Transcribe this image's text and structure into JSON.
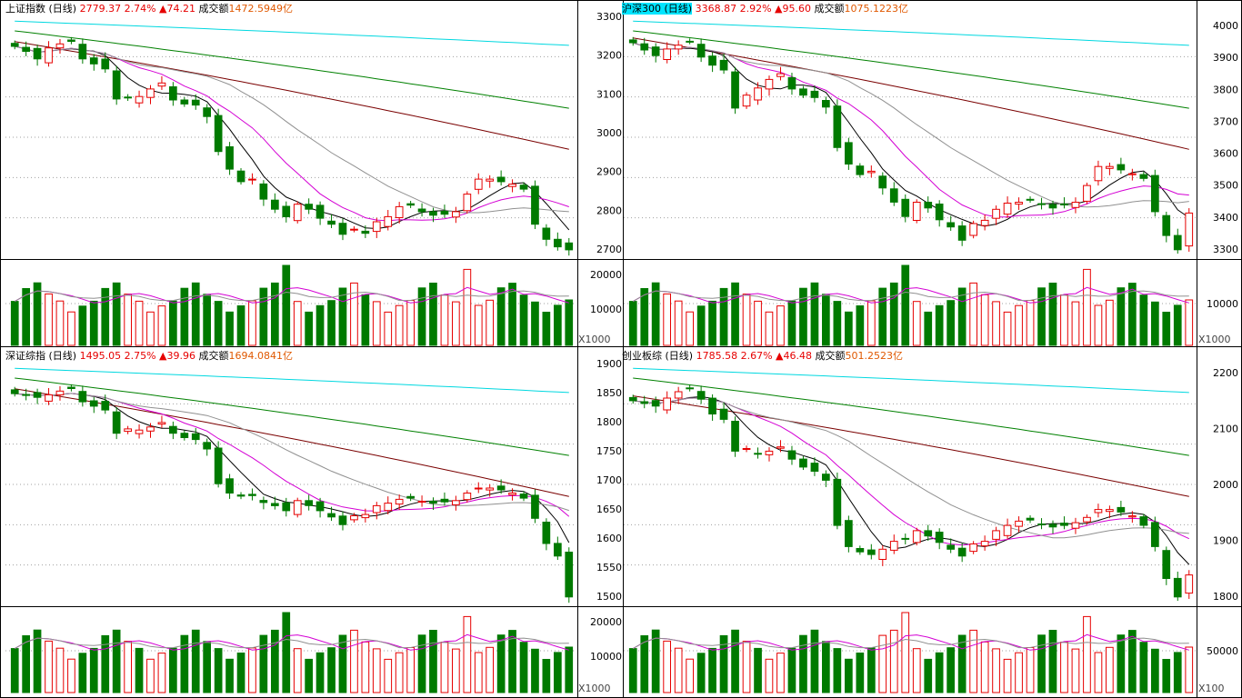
{
  "colors": {
    "up": "#e60000",
    "down": "#007a00",
    "ma5": "#000000",
    "ma10": "#d400d4",
    "ma20": "#909090",
    "ma60": "#7a0000",
    "ma120": "#008000",
    "ma250": "#00d8e0",
    "highlight": "#00e5ff",
    "grid": "#a0a0a0"
  },
  "panels": [
    {
      "name": "上证指数 (日线)",
      "price": "2779.37",
      "change_pct": "2.74%",
      "change_abs": "▲74.21",
      "turnover_label": "成交额",
      "turnover": "1472.5949亿",
      "highlight_name": false,
      "axis_side": "right",
      "price_ticks": [],
      "volume_ticks": [],
      "volume_unit": "X1000"
    },
    {
      "name": "沪深300 (日线)",
      "price": "3368.87",
      "change_pct": "2.92%",
      "change_abs": "▲95.60",
      "turnover_label": "成交额",
      "turnover": "1075.1223亿",
      "highlight_name": true,
      "axis_side": "both",
      "price_ticks": [
        "3300",
        "3200",
        "3100",
        "3000",
        "2900",
        "2800",
        "2700"
      ],
      "price_ticks_right": [
        "4000",
        "3900",
        "3800",
        "3700",
        "3600",
        "3500",
        "3400",
        "3300"
      ],
      "volume_ticks": [
        "20000",
        "10000"
      ],
      "volume_ticks_right": [
        "10000"
      ],
      "volume_unit": "X1000"
    },
    {
      "name": "深证综指 (日线)",
      "price": "1495.05",
      "change_pct": "2.75%",
      "change_abs": "▲39.96",
      "turnover_label": "成交额",
      "turnover": "1694.0841亿",
      "highlight_name": false,
      "axis_side": "right",
      "price_ticks": [],
      "volume_ticks": [],
      "volume_unit": "X1000"
    },
    {
      "name": "创业板综 (日线)",
      "price": "1785.58",
      "change_pct": "2.67%",
      "change_abs": "▲46.48",
      "turnover_label": "成交额",
      "turnover": "501.2523亿",
      "highlight_name": false,
      "axis_side": "both",
      "price_ticks": [
        "1900",
        "1850",
        "1800",
        "1750",
        "1700",
        "1650",
        "1600",
        "1550",
        "1500"
      ],
      "price_ticks_right": [
        "2200",
        "2100",
        "2000",
        "1900",
        "1800"
      ],
      "volume_ticks": [
        "20000",
        "10000"
      ],
      "volume_ticks_right": [
        "50000"
      ],
      "volume_unit": "X100"
    }
  ],
  "chart_data": [
    {
      "type": "candlestick",
      "title": "上证指数 (日线)",
      "series": [
        {
          "name": "close",
          "values": [
            3185,
            3175,
            3160,
            3182,
            3190,
            3195,
            3160,
            3150,
            3140,
            3080,
            3082,
            3085,
            3100,
            3112,
            3078,
            3070,
            3068,
            3045,
            2975,
            2940,
            2915,
            2920,
            2880,
            2860,
            2845,
            2870,
            2860,
            2842,
            2830,
            2810,
            2820,
            2812,
            2835,
            2845,
            2865,
            2868,
            2855,
            2848,
            2850,
            2855,
            2890,
            2920,
            2920,
            2915,
            2910,
            2900,
            2830,
            2800,
            2785,
            2779
          ]
        }
      ],
      "volume_unit": "X1000"
    },
    {
      "type": "candlestick",
      "title": "沪深300 (日线)",
      "ylim": [
        2700,
        3300
      ],
      "ylim_right": [
        3300,
        4000
      ],
      "x_ticks": [],
      "series": [
        {
          "name": "close",
          "values": [
            3195,
            3180,
            3168,
            3182,
            3190,
            3198,
            3165,
            3148,
            3138,
            3058,
            3085,
            3100,
            3118,
            3130,
            3098,
            3085,
            3080,
            3060,
            2975,
            2940,
            2918,
            2925,
            2890,
            2860,
            2830,
            2860,
            2848,
            2823,
            2808,
            2780,
            2815,
            2822,
            2845,
            2858,
            2860,
            2865,
            2855,
            2848,
            2855,
            2860,
            2895,
            2935,
            2935,
            2928,
            2920,
            2910,
            2840,
            2790,
            2760,
            3368
          ]
        }
      ],
      "volume_ticks": [
        20000,
        10000
      ],
      "volume_unit": "X1000"
    },
    {
      "type": "candlestick",
      "title": "深证综指 (日线)",
      "series": [
        {
          "name": "close",
          "values": [
            1818,
            1815,
            1812,
            1816,
            1822,
            1826,
            1805,
            1798,
            1792,
            1755,
            1762,
            1760,
            1765,
            1772,
            1755,
            1748,
            1745,
            1730,
            1675,
            1660,
            1655,
            1656,
            1645,
            1640,
            1632,
            1648,
            1640,
            1632,
            1622,
            1610,
            1624,
            1626,
            1640,
            1644,
            1650,
            1652,
            1647,
            1644,
            1646,
            1648,
            1660,
            1668,
            1668,
            1665,
            1660,
            1652,
            1620,
            1580,
            1560,
            1495
          ]
        }
      ],
      "volume_unit": "X1000"
    },
    {
      "type": "candlestick",
      "title": "创业板综 (日线)",
      "ylim": [
        1500,
        1900
      ],
      "ylim_right": [
        1800,
        2200
      ],
      "series": [
        {
          "name": "close",
          "values": [
            1855,
            1850,
            1845,
            1860,
            1872,
            1878,
            1858,
            1830,
            1820,
            1760,
            1765,
            1755,
            1760,
            1768,
            1745,
            1730,
            1722,
            1705,
            1620,
            1580,
            1570,
            1565,
            1575,
            1590,
            1595,
            1610,
            1600,
            1588,
            1575,
            1562,
            1585,
            1590,
            1610,
            1620,
            1628,
            1630,
            1622,
            1617,
            1620,
            1625,
            1635,
            1650,
            1650,
            1645,
            1638,
            1620,
            1580,
            1520,
            1485,
            1785
          ]
        }
      ],
      "volume_ticks": [
        20000,
        10000
      ],
      "volume_unit": "X100"
    }
  ]
}
